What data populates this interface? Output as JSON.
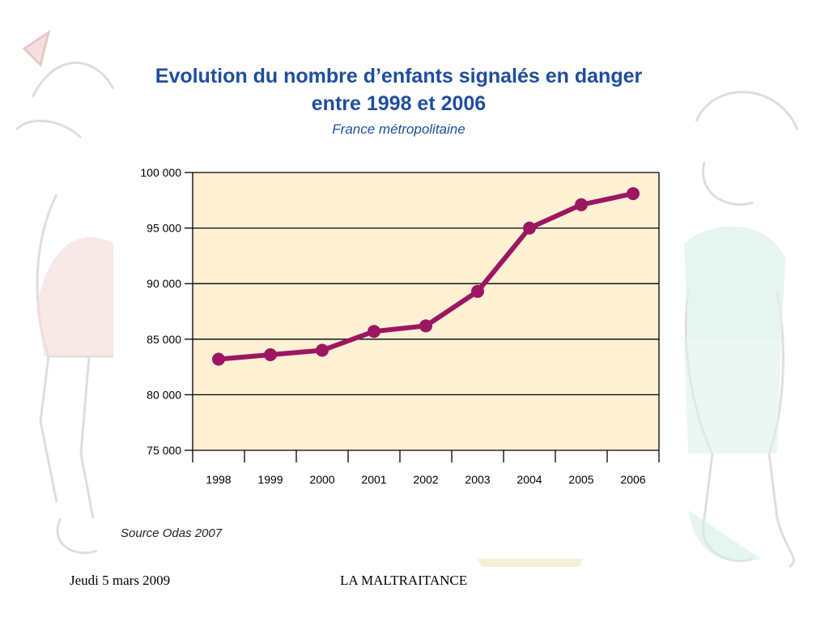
{
  "slide": {
    "footer_date": "Jeudi 5 mars 2009",
    "footer_title": "LA MALTRAITANCE"
  },
  "chart_data": {
    "type": "line",
    "title_line1": "Evolution du nombre d’enfants signalés en danger",
    "title_line2": "entre 1998 et 2006",
    "subtitle": "France métropolitaine",
    "source": "Source Odas 2007",
    "categories": [
      "1998",
      "1999",
      "2000",
      "2001",
      "2002",
      "2003",
      "2004",
      "2005",
      "2006"
    ],
    "values": [
      83200,
      83600,
      84000,
      85700,
      86200,
      89300,
      95000,
      97100,
      98100
    ],
    "ylim": [
      75000,
      100000
    ],
    "yticks": [
      75000,
      80000,
      85000,
      90000,
      95000,
      100000
    ],
    "ytick_labels": [
      "75 000",
      "80 000",
      "85 000",
      "90 000",
      "95 000",
      "100 000"
    ],
    "grid": true,
    "colors": {
      "line": "#9c1662",
      "plot_bg": "#fdf0d3",
      "title": "#1f4e9c"
    }
  }
}
